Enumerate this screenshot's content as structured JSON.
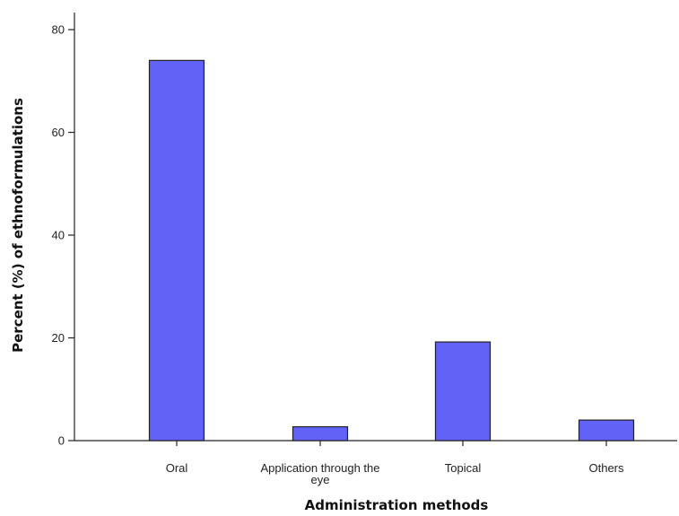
{
  "chart_data": {
    "type": "bar",
    "title": "",
    "xlabel": "Administration methods",
    "ylabel": "Percent  (%) of ethnoformulations",
    "categories": [
      [
        "Oral"
      ],
      [
        "Application through the",
        "eye"
      ],
      [
        "Topical"
      ],
      [
        "Others"
      ]
    ],
    "values": [
      74,
      2.7,
      19.2,
      4
    ],
    "ylim": [
      0,
      80
    ],
    "yticks": [
      0,
      20,
      40,
      60,
      80
    ],
    "grid": false,
    "legend": "none",
    "bar_color": "#6262f6"
  }
}
